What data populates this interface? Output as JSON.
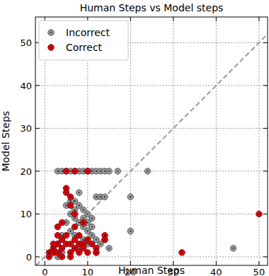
{
  "chart_data": {
    "type": "scatter",
    "title": "Human Steps vs Model steps",
    "x_label": "Human Steps",
    "y_label": "Model Steps",
    "xlim": [
      -2.2,
      52
    ],
    "ylim": [
      -2,
      56
    ],
    "xticks": [
      0,
      10,
      20,
      30,
      40,
      50
    ],
    "yticks": [
      0,
      10,
      20,
      30,
      40,
      50
    ],
    "grid": true,
    "legend": "upper left",
    "marker": "circle",
    "series": [
      {
        "name": "Incorrect",
        "color": "#9e9e9e",
        "x": [
          3,
          4,
          5,
          6,
          7,
          8,
          9,
          10,
          11,
          12,
          13,
          14,
          15,
          17,
          24,
          12,
          13,
          14,
          20,
          20,
          44,
          15,
          10,
          11,
          9,
          8,
          7,
          6,
          6,
          7,
          5,
          5,
          4,
          8,
          9,
          10,
          11,
          12,
          13,
          14,
          3,
          6,
          7,
          9,
          10,
          8,
          2,
          4,
          6,
          3,
          12,
          9,
          10,
          11,
          7,
          8
        ],
        "values": [
          20,
          20,
          20,
          20,
          20,
          20,
          20,
          20,
          20,
          20,
          20,
          20,
          20,
          20,
          20,
          14,
          14,
          14,
          14,
          6,
          2,
          2,
          10,
          9,
          11,
          12,
          13,
          13,
          10,
          11,
          8,
          12,
          5,
          8,
          7,
          6,
          5,
          4,
          3,
          4,
          3,
          6,
          5,
          4,
          3,
          2,
          2,
          1,
          1,
          0,
          1,
          9,
          8,
          7,
          9,
          15
        ]
      },
      {
        "name": "Correct",
        "color": "#e8000b",
        "x": [
          50,
          32,
          5,
          5,
          6,
          6,
          7,
          5,
          7,
          10,
          3,
          4,
          1,
          1,
          2,
          2,
          3,
          3,
          4,
          4,
          5,
          5,
          6,
          6,
          7,
          7,
          8,
          8,
          9,
          9,
          10,
          10,
          11,
          12,
          14,
          14,
          12,
          4,
          6,
          8,
          9,
          2,
          3,
          7
        ],
        "values": [
          10,
          1,
          16,
          15,
          14,
          12,
          10,
          20,
          20,
          20,
          7,
          8,
          1,
          0,
          2,
          1,
          3,
          1,
          4,
          2,
          5,
          3,
          3,
          1,
          2,
          4,
          5,
          1,
          3,
          2,
          1,
          4,
          3,
          2,
          5,
          4,
          1,
          0,
          0,
          3,
          8,
          3,
          5,
          7
        ]
      }
    ]
  }
}
